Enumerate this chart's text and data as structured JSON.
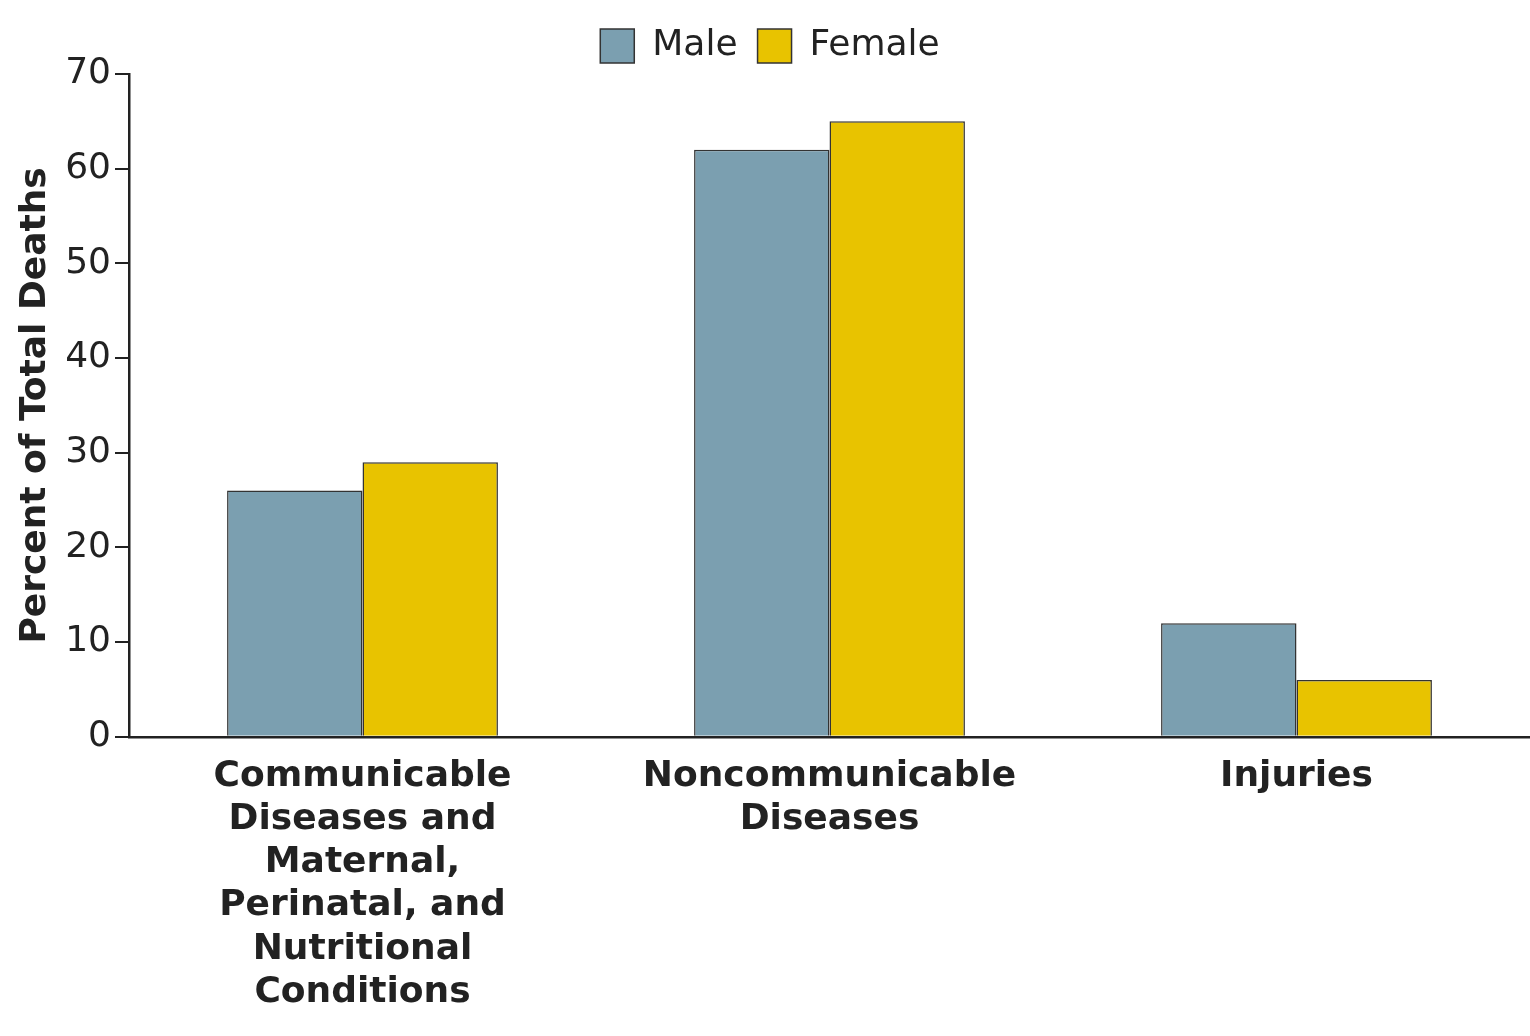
{
  "chart_data": {
    "type": "bar",
    "categories": [
      "Communicable Diseases and Maternal, Perinatal, and Nutritional Conditions",
      "Noncommunicable Diseases",
      "Injuries"
    ],
    "series": [
      {
        "name": "Male",
        "color": "#7b9fb0",
        "values": [
          26,
          62,
          12
        ]
      },
      {
        "name": "Female",
        "color": "#e8c300",
        "values": [
          29,
          65,
          6
        ]
      }
    ],
    "ylabel": "Percent of Total Deaths",
    "ylim": [
      0,
      70
    ],
    "yticks": [
      0,
      10,
      20,
      30,
      40,
      50,
      60,
      70
    ],
    "grid": false,
    "legend": "top"
  }
}
